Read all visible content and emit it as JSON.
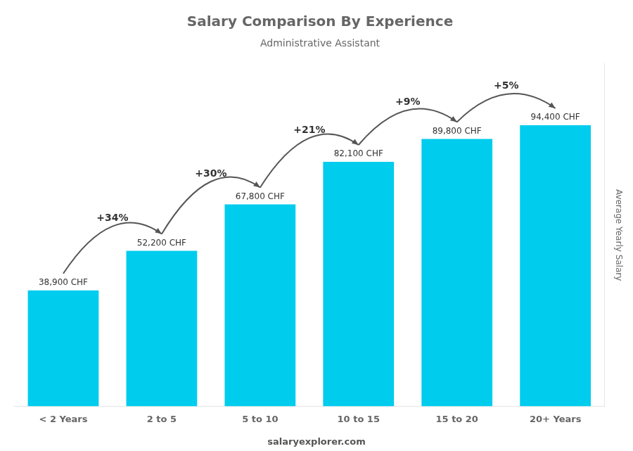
{
  "chart_data": {
    "type": "bar",
    "title": "Salary Comparison By Experience",
    "subtitle": "Administrative Assistant",
    "ylabel": "Average Yearly Salary",
    "categories": [
      "< 2 Years",
      "2 to 5",
      "5 to 10",
      "10 to 15",
      "15 to 20",
      "20+ Years"
    ],
    "values": [
      38900,
      52200,
      67800,
      82100,
      89800,
      94400
    ],
    "value_labels": [
      "38,900 CHF",
      "52,200 CHF",
      "67,800 CHF",
      "82,100 CHF",
      "89,800 CHF",
      "94,400 CHF"
    ],
    "data_labels": true,
    "annotations": [
      "+34%",
      "+30%",
      "+21%",
      "+9%",
      "+5%"
    ],
    "footer": "salaryexplorer.com",
    "color": "#00CCEE",
    "ylim": [
      0,
      115000
    ],
    "grid": false,
    "tick_labels": "x"
  }
}
